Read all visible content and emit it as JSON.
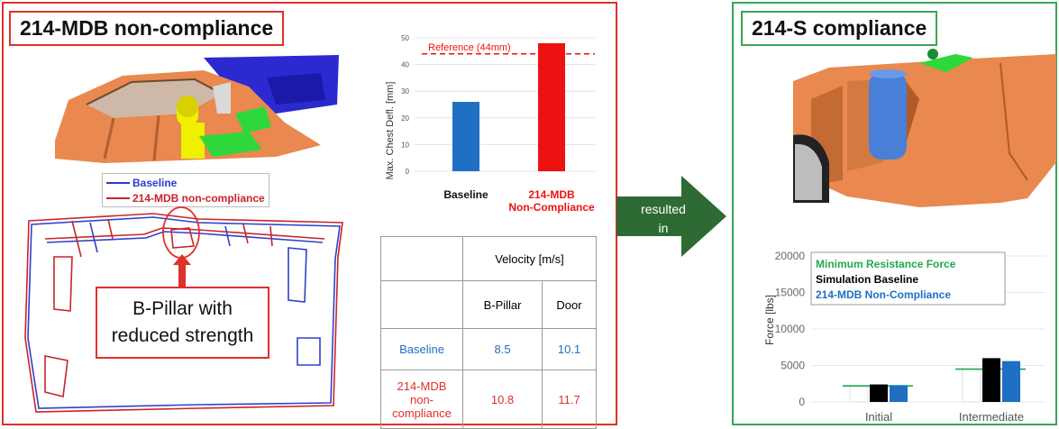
{
  "left_title": "214-MDB non-compliance",
  "right_title": "214-S compliance",
  "arrow_label_line1": "resulted",
  "arrow_label_line2": "in",
  "legend": {
    "baseline": "Baseline",
    "noncompliance": "214-MDB non-compliance"
  },
  "callout_line1": "B-Pillar with",
  "callout_line2": "reduced strength",
  "colors": {
    "red": "#e0302a",
    "green": "#3aa655",
    "blue": "#1f6fc3",
    "dark_green": "#2e6b34",
    "car_orange": "#e9884f",
    "barrier_blue": "#2a2ad0"
  },
  "velocity_table": {
    "header": "Velocity [m/s]",
    "col1": "B-Pillar",
    "col2": "Door",
    "row1_label": "Baseline",
    "row1_v1": "8.5",
    "row1_v2": "10.1",
    "row2_label_line1": "214-MDB",
    "row2_label_line2": "non-",
    "row2_label_line3": "compliance",
    "row2_v1": "10.8",
    "row2_v2": "11.7"
  },
  "chart_data": [
    {
      "type": "bar",
      "ylabel": "Max. Chest Defl. [mm]",
      "ylim": [
        0,
        50
      ],
      "yticks": [
        "0",
        "10",
        "20",
        "30",
        "40",
        "50"
      ],
      "categories": [
        "Baseline",
        "214-MDB Non-Compliance"
      ],
      "category_labels": [
        [
          "Baseline"
        ],
        [
          "214-MDB",
          "Non-Compliance"
        ]
      ],
      "values": [
        26,
        48
      ],
      "bar_colors": [
        "#1f6fc3",
        "#ee1111"
      ],
      "reference": {
        "label": "Reference (44mm)",
        "value": 44
      },
      "grid": true
    },
    {
      "type": "bar",
      "ylabel": "Force [lbs]",
      "ylim": [
        0,
        20000
      ],
      "yticks": [
        "0",
        "5000",
        "10000",
        "15000",
        "20000"
      ],
      "categories": [
        "Initial",
        "Intermediate"
      ],
      "series": [
        {
          "name": "Minimum Resistance Force",
          "values": [
            2200,
            4500
          ],
          "color": "#1fa84a"
        },
        {
          "name": "Simulation Baseline",
          "values": [
            2400,
            6000
          ],
          "color": "#000000"
        },
        {
          "name": "214-MDB Non-Compliance",
          "values": [
            2300,
            5600
          ],
          "color": "#1f6fc3"
        }
      ],
      "grid": true
    }
  ]
}
